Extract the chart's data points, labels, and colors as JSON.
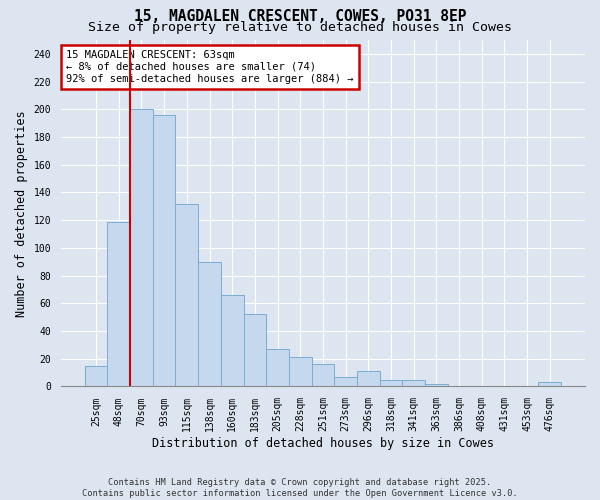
{
  "title1": "15, MAGDALEN CRESCENT, COWES, PO31 8EP",
  "title2": "Size of property relative to detached houses in Cowes",
  "xlabel": "Distribution of detached houses by size in Cowes",
  "ylabel": "Number of detached properties",
  "categories": [
    "25sqm",
    "48sqm",
    "70sqm",
    "93sqm",
    "115sqm",
    "138sqm",
    "160sqm",
    "183sqm",
    "205sqm",
    "228sqm",
    "251sqm",
    "273sqm",
    "296sqm",
    "318sqm",
    "341sqm",
    "363sqm",
    "386sqm",
    "408sqm",
    "431sqm",
    "453sqm",
    "476sqm"
  ],
  "values": [
    15,
    119,
    200,
    196,
    132,
    90,
    66,
    52,
    27,
    21,
    16,
    7,
    11,
    5,
    5,
    2,
    0,
    0,
    0,
    0,
    3
  ],
  "bar_color": "#c5d8ee",
  "bar_edge_color": "#7aadd4",
  "highlight_index": 2,
  "highlight_line_color": "#cc0000",
  "annotation_text": "15 MAGDALEN CRESCENT: 63sqm\n← 8% of detached houses are smaller (74)\n92% of semi-detached houses are larger (884) →",
  "annotation_box_color": "#ffffff",
  "annotation_box_edge": "#cc0000",
  "background_color": "#dde6f0",
  "plot_bg_color": "#dde6f0",
  "ylim": [
    0,
    250
  ],
  "yticks": [
    0,
    20,
    40,
    60,
    80,
    100,
    120,
    140,
    160,
    180,
    200,
    220,
    240
  ],
  "footer_text": "Contains HM Land Registry data © Crown copyright and database right 2025.\nContains public sector information licensed under the Open Government Licence v3.0.",
  "title_fontsize": 10.5,
  "subtitle_fontsize": 9.5,
  "tick_fontsize": 7,
  "ylabel_fontsize": 8.5,
  "xlabel_fontsize": 8.5,
  "annotation_fontsize": 7.5
}
